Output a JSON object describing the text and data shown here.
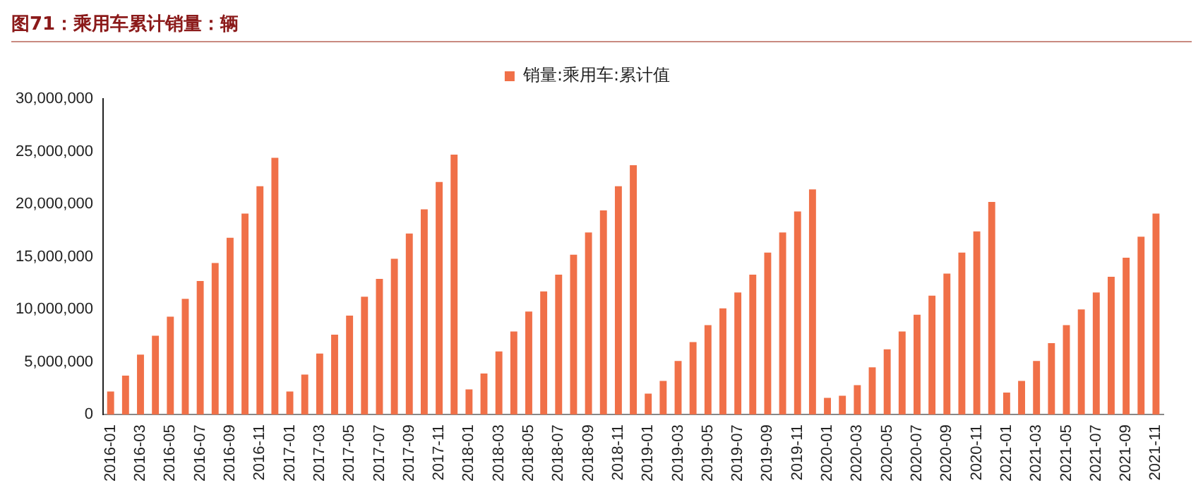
{
  "chart_data": {
    "type": "bar",
    "title": "图71：乘用车累计销量：辆",
    "categories": [
      "2016-01",
      null,
      "2016-03",
      null,
      "2016-05",
      null,
      "2016-07",
      null,
      "2016-09",
      null,
      "2016-11",
      null,
      "2017-01",
      null,
      "2017-03",
      null,
      "2017-05",
      null,
      "2017-07",
      null,
      "2017-09",
      null,
      "2017-11",
      null,
      "2018-01",
      null,
      "2018-03",
      null,
      "2018-05",
      null,
      "2018-07",
      null,
      "2018-09",
      null,
      "2018-11",
      null,
      "2019-01",
      null,
      "2019-03",
      null,
      "2019-05",
      null,
      "2019-07",
      null,
      "2019-09",
      null,
      "2019-11",
      null,
      "2020-01",
      null,
      "2020-03",
      null,
      "2020-05",
      null,
      "2020-07",
      null,
      "2020-09",
      null,
      "2020-11",
      null,
      "2021-01",
      null,
      "2021-03",
      null,
      "2021-05",
      null,
      "2021-07",
      null,
      "2021-09",
      null,
      "2021-11"
    ],
    "series": [
      {
        "name": "销量:乘用车:累计值",
        "color": "#f07048",
        "values": [
          2200000,
          3700000,
          5700000,
          7500000,
          9300000,
          11000000,
          12700000,
          14400000,
          16800000,
          19100000,
          21700000,
          24400000,
          2200000,
          3800000,
          5800000,
          7600000,
          9400000,
          11200000,
          12900000,
          14800000,
          17200000,
          19500000,
          22100000,
          24700000,
          2400000,
          3900000,
          6000000,
          7900000,
          9800000,
          11700000,
          13300000,
          15200000,
          17300000,
          19400000,
          21700000,
          23700000,
          2000000,
          3200000,
          5100000,
          6900000,
          8500000,
          10100000,
          11600000,
          13300000,
          15400000,
          17300000,
          19300000,
          21400000,
          1600000,
          1800000,
          2800000,
          4500000,
          6200000,
          7900000,
          9500000,
          11300000,
          13400000,
          15400000,
          17400000,
          20200000,
          2100000,
          3200000,
          5100000,
          6800000,
          8500000,
          10000000,
          11600000,
          13100000,
          14900000,
          16900000,
          19100000
        ]
      }
    ],
    "ylim": [
      0,
      30000000
    ],
    "yticks": [
      {
        "value": 0,
        "label": "0"
      },
      {
        "value": 5000000,
        "label": "5,000,000"
      },
      {
        "value": 10000000,
        "label": "10,000,000"
      },
      {
        "value": 15000000,
        "label": "15,000,000"
      },
      {
        "value": 20000000,
        "label": "20,000,000"
      },
      {
        "value": 25000000,
        "label": "25,000,000"
      },
      {
        "value": 30000000,
        "label": "30,000,000"
      }
    ],
    "legend": "top",
    "grid": false
  }
}
